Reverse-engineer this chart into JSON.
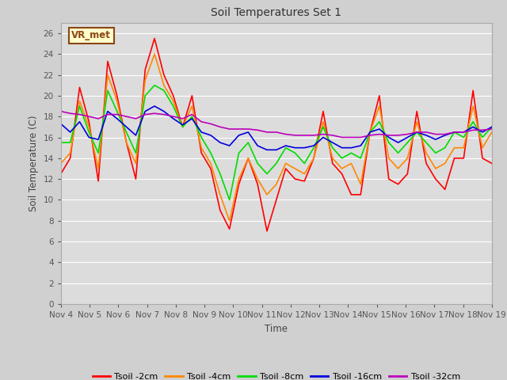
{
  "title": "Soil Temperatures Set 1",
  "xlabel": "Time",
  "ylabel": "Soil Temperature (C)",
  "ylim": [
    0,
    27
  ],
  "yticks": [
    0,
    2,
    4,
    6,
    8,
    10,
    12,
    14,
    16,
    18,
    20,
    22,
    24,
    26
  ],
  "x_labels": [
    "Nov 4",
    "Nov 5",
    "Nov 6",
    "Nov 7",
    "Nov 8",
    "Nov 9",
    "Nov 10",
    "Nov 11",
    "Nov 12",
    "Nov 13",
    "Nov 14",
    "Nov 15",
    "Nov 16",
    "Nov 17",
    "Nov 18",
    "Nov 19"
  ],
  "annotation_text": "VR_met",
  "annotation_bg": "#ffffcc",
  "annotation_border": "#8B4513",
  "colors": {
    "Tsoil -2cm": "#ff0000",
    "Tsoil -4cm": "#ff8800",
    "Tsoil -8cm": "#00dd00",
    "Tsoil -16cm": "#0000dd",
    "Tsoil -32cm": "#bb00bb"
  },
  "fig_bg": "#d0d0d0",
  "plot_bg": "#dcdcdc",
  "grid_color": "#ffffff",
  "series_2cm": [
    12.5,
    14.0,
    20.8,
    17.5,
    11.8,
    23.3,
    20.0,
    15.5,
    12.0,
    22.5,
    25.5,
    22.0,
    20.0,
    17.0,
    20.0,
    14.5,
    13.0,
    9.0,
    7.2,
    11.5,
    14.0,
    11.5,
    7.0,
    10.0,
    13.0,
    12.0,
    11.8,
    14.0,
    18.5,
    13.5,
    12.5,
    10.5,
    10.5,
    16.5,
    20.0,
    12.0,
    11.5,
    12.5,
    18.5,
    13.5,
    12.0,
    11.0,
    14.0,
    14.0,
    20.5,
    14.0,
    13.5
  ],
  "series_4cm": [
    13.5,
    14.5,
    19.5,
    17.0,
    13.0,
    22.0,
    19.5,
    15.5,
    13.5,
    21.5,
    24.0,
    21.0,
    19.5,
    17.0,
    19.0,
    15.0,
    13.5,
    10.5,
    8.0,
    12.0,
    14.0,
    12.0,
    10.5,
    11.5,
    13.5,
    13.0,
    12.5,
    14.0,
    17.5,
    14.0,
    13.0,
    13.5,
    11.5,
    16.5,
    19.0,
    14.0,
    13.0,
    14.0,
    17.5,
    14.5,
    13.0,
    13.5,
    15.0,
    15.0,
    19.0,
    15.0,
    16.5
  ],
  "series_8cm": [
    15.5,
    15.5,
    19.0,
    16.5,
    14.5,
    20.5,
    18.5,
    16.5,
    14.5,
    20.0,
    21.0,
    20.5,
    19.0,
    17.0,
    18.0,
    16.0,
    14.5,
    12.5,
    10.0,
    14.5,
    15.5,
    13.5,
    12.5,
    13.5,
    15.0,
    14.5,
    13.5,
    15.0,
    17.0,
    15.0,
    14.0,
    14.5,
    14.0,
    16.5,
    17.5,
    15.5,
    14.5,
    15.5,
    16.5,
    15.5,
    14.5,
    15.0,
    16.5,
    16.0,
    17.5,
    16.0,
    17.0
  ],
  "series_16cm": [
    17.3,
    16.5,
    17.5,
    16.0,
    15.8,
    18.5,
    17.8,
    17.0,
    16.2,
    18.5,
    19.0,
    18.5,
    17.8,
    17.2,
    17.8,
    16.5,
    16.2,
    15.5,
    15.2,
    16.2,
    16.5,
    15.2,
    14.8,
    14.8,
    15.2,
    15.0,
    15.0,
    15.2,
    16.0,
    15.5,
    15.0,
    15.0,
    15.2,
    16.5,
    16.8,
    16.0,
    15.5,
    16.0,
    16.5,
    16.2,
    15.8,
    16.2,
    16.5,
    16.5,
    17.0,
    16.5,
    17.0
  ],
  "series_32cm": [
    18.5,
    18.3,
    18.2,
    18.0,
    17.8,
    18.2,
    18.2,
    18.0,
    17.8,
    18.2,
    18.3,
    18.2,
    18.0,
    17.8,
    18.2,
    17.5,
    17.3,
    17.0,
    16.8,
    16.8,
    16.8,
    16.7,
    16.5,
    16.5,
    16.3,
    16.2,
    16.2,
    16.2,
    16.3,
    16.2,
    16.0,
    16.0,
    16.0,
    16.2,
    16.3,
    16.2,
    16.2,
    16.3,
    16.5,
    16.5,
    16.3,
    16.3,
    16.5,
    16.5,
    16.7,
    16.7,
    16.8
  ]
}
